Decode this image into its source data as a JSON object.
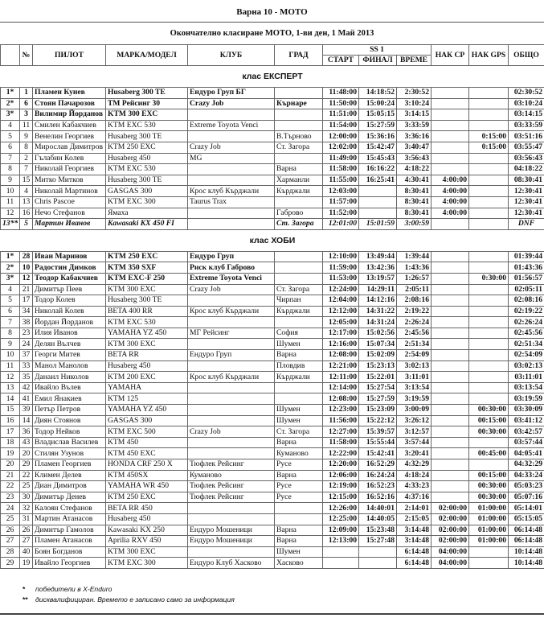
{
  "title": "Варна 10 - МОТО",
  "subtitle": "Окончателно класиране МОТО, 1-ви ден, 1 Май 2013",
  "headers": {
    "pos": "",
    "num": "№",
    "pilot": "ПИЛОТ",
    "model": "МАРКА/МОДЕЛ",
    "club": "КЛУБ",
    "city": "ГРАД",
    "ss": "SS 1",
    "start": "СТАРТ",
    "finish": "ФИНАЛ",
    "time": "ВРЕМЕ",
    "cp": "НАК CP",
    "gps": "НАК GPS",
    "total": "ОБЩО"
  },
  "classes": [
    {
      "name": "клас ЕКСПЕРТ",
      "rows": [
        [
          "1*",
          "1",
          "Пламен Кунев",
          "Husaberg 300 TE",
          "Ендуро Груп БГ",
          "",
          "11:48:00",
          "14:18:52",
          "2:30:52",
          "",
          "",
          "02:30:52"
        ],
        [
          "2*",
          "6",
          "Стоян Пачарозов",
          "TM Рейсинг 30",
          "Crazy Job",
          "Кърнаре",
          "11:50:00",
          "15:00:24",
          "3:10:24",
          "",
          "",
          "03:10:24"
        ],
        [
          "3*",
          "3",
          "Вилимир Йорданов",
          "KTM 300 EXC",
          "",
          "",
          "11:51:00",
          "15:05:15",
          "3:14:15",
          "",
          "",
          "03:14:15"
        ],
        [
          "4",
          "11",
          "Смилен Кабакчиев",
          "KTM EXC 530",
          "Extreme Toyota Venci",
          "",
          "11:54:00",
          "15:27:59",
          "3:33:59",
          "",
          "",
          "03:33:59"
        ],
        [
          "5",
          "9",
          "Венелин Георгиев",
          "Husaberg 300 TE",
          "",
          "В.Търново",
          "12:00:00",
          "15:36:16",
          "3:36:16",
          "",
          "0:15:00",
          "03:51:16"
        ],
        [
          "6",
          "8",
          "Мирослав Димитров",
          "KTM 250 EXC",
          "Crazy Job",
          "Ст. Загора",
          "12:02:00",
          "15:42:47",
          "3:40:47",
          "",
          "0:15:00",
          "03:55:47"
        ],
        [
          "7",
          "2",
          "Гълабин Колев",
          "Husaberg 450",
          "MG",
          "",
          "11:49:00",
          "15:45:43",
          "3:56:43",
          "",
          "",
          "03:56:43"
        ],
        [
          "8",
          "7",
          "Николай Георгиев",
          "KTM EXC 530",
          "",
          "Варна",
          "11:58:00",
          "16:16:22",
          "4:18:22",
          "",
          "",
          "04:18:22"
        ],
        [
          "9",
          "15",
          "Митко Митков",
          "Husaberg 300 TE",
          "",
          "Харманли",
          "11:55:00",
          "16:25:41",
          "4:30:41",
          "4:00:00",
          "",
          "08:30:41"
        ],
        [
          "10",
          "4",
          "Николай Мартинов",
          "GASGAS 300",
          "Крос клуб Кърджали",
          "Кърджали",
          "12:03:00",
          "",
          "8:30:41",
          "4:00:00",
          "",
          "12:30:41"
        ],
        [
          "11",
          "13",
          "Chris Pascoe",
          "KTM EXC 300",
          "Taurus Trax",
          "",
          "11:57:00",
          "",
          "8:30:41",
          "4:00:00",
          "",
          "12:30:41"
        ],
        [
          "12",
          "16",
          "Нечо Стефанов",
          "Ямаха",
          "",
          "Габрово",
          "11:52:00",
          "",
          "8:30:41",
          "4:00:00",
          "",
          "12:30:41"
        ],
        [
          "13**",
          "5",
          "Мартин Иванов",
          "Kawasaki KX 450 FI",
          "",
          "Ст. Загора",
          "12:01:00",
          "15:01:59",
          "3:00:59",
          "",
          "",
          "DNF"
        ]
      ]
    },
    {
      "name": "клас ХОБИ",
      "rows": [
        [
          "1*",
          "28",
          "Иван Маринов",
          "KTM 250 EXC",
          "Ендуро Груп",
          "",
          "12:10:00",
          "13:49:44",
          "1:39:44",
          "",
          "",
          "01:39:44"
        ],
        [
          "2*",
          "10",
          "Радостин Димков",
          "KTM 350 SXF",
          "Риск клуб Габрово",
          "",
          "11:59:00",
          "13:42:36",
          "1:43:36",
          "",
          "",
          "01:43:36"
        ],
        [
          "3*",
          "12",
          "Теодор Кабакчиев",
          "KTM EXC-F 250",
          "Extreme Toyota Venci",
          "",
          "11:53:00",
          "13:19:57",
          "1:26:57",
          "",
          "0:30:00",
          "01:56:57"
        ],
        [
          "4",
          "21",
          "Димитър Пеев",
          "KTM 300 EXC",
          "Crazy Job",
          "Ст. Загора",
          "12:24:00",
          "14:29:11",
          "2:05:11",
          "",
          "",
          "02:05:11"
        ],
        [
          "5",
          "17",
          "Тодор Колев",
          "Husaberg 300 TE",
          "",
          "Чирпан",
          "12:04:00",
          "14:12:16",
          "2:08:16",
          "",
          "",
          "02:08:16"
        ],
        [
          "6",
          "34",
          "Николай Колев",
          "BETA 400 RR",
          "Крос клуб Кърджали",
          "Кърджали",
          "12:12:00",
          "14:31:22",
          "2:19:22",
          "",
          "",
          "02:19:22"
        ],
        [
          "7",
          "38",
          "Йордан Йорданов",
          "KTM EXC 530",
          "",
          "",
          "12:05:00",
          "14:31:24",
          "2:26:24",
          "",
          "",
          "02:26:24"
        ],
        [
          "8",
          "23",
          "Илия Иванов",
          "YAMAHA YZ 450",
          "МГ Рейсинг",
          "София",
          "12:17:00",
          "15:02:56",
          "2:45:56",
          "",
          "",
          "02:45:56"
        ],
        [
          "9",
          "24",
          "Делян Вълчев",
          "KTM 300 EXC",
          "",
          "Шумен",
          "12:16:00",
          "15:07:34",
          "2:51:34",
          "",
          "",
          "02:51:34"
        ],
        [
          "10",
          "37",
          "Георги Митев",
          "BETA RR",
          "Ендуро Груп",
          "Варна",
          "12:08:00",
          "15:02:09",
          "2:54:09",
          "",
          "",
          "02:54:09"
        ],
        [
          "11",
          "33",
          "Манол Манолов",
          "Husaberg 450",
          "",
          "Пловдив",
          "12:21:00",
          "15:23:13",
          "3:02:13",
          "",
          "",
          "03:02:13"
        ],
        [
          "12",
          "35",
          "Данаил Николов",
          "KTM 200 EXC",
          "Крос клуб Кърджали",
          "Кърджали",
          "12:11:00",
          "15:22:01",
          "3:11:01",
          "",
          "",
          "03:11:01"
        ],
        [
          "13",
          "42",
          "Ивайло Вълев",
          "YAMAHA",
          "",
          "",
          "12:14:00",
          "15:27:54",
          "3:13:54",
          "",
          "",
          "03:13:54"
        ],
        [
          "14",
          "41",
          "Емил Янакиев",
          "KTM 125",
          "",
          "",
          "12:08:00",
          "15:27:59",
          "3:19:59",
          "",
          "",
          "03:19:59"
        ],
        [
          "15",
          "39",
          "Петър Петров",
          "YAMAHA YZ 450",
          "",
          "Шумен",
          "12:23:00",
          "15:23:09",
          "3:00:09",
          "",
          "00:30:00",
          "03:30:09"
        ],
        [
          "16",
          "14",
          "Диян Стоянов",
          "GASGAS 300",
          "",
          "Шумен",
          "11:56:00",
          "15:22:12",
          "3:26:12",
          "",
          "00:15:00",
          "03:41:12"
        ],
        [
          "17",
          "36",
          "Тодор Нейков",
          "KTM EXC 500",
          "Crazy Job",
          "Ст. Загора",
          "12:27:00",
          "15:39:57",
          "3:12:57",
          "",
          "00:30:00",
          "03:42:57"
        ],
        [
          "18",
          "43",
          "Владислав Василев",
          "KTM 450",
          "",
          "Варна",
          "11:58:00",
          "15:55:44",
          "3:57:44",
          "",
          "",
          "03:57:44"
        ],
        [
          "19",
          "20",
          "Стилян Узунов",
          "KTM 450 EXC",
          "",
          "Куманово",
          "12:22:00",
          "15:42:41",
          "3:20:41",
          "",
          "00:45:00",
          "04:05:41"
        ],
        [
          "20",
          "29",
          "Пламен Георгиев",
          "HONDA CRF 250 X",
          "Тюфлек Рейсинг",
          "Русе",
          "12:20:00",
          "16:52:29",
          "4:32:29",
          "",
          "",
          "04:32:29"
        ],
        [
          "21",
          "22",
          "Климен Делев",
          "KTM 450SX",
          "Куманово",
          "Варна",
          "12:06:00",
          "16:24:24",
          "4:18:24",
          "",
          "00:15:00",
          "04:33:24"
        ],
        [
          "22",
          "25",
          "Диан Димитров",
          "YAMAHA WR 450",
          "Тюфлек Рейсинг",
          "Русе",
          "12:19:00",
          "16:52:23",
          "4:33:23",
          "",
          "00:30:00",
          "05:03:23"
        ],
        [
          "23",
          "30",
          "Димитър Денев",
          "KTM 250 EXC",
          "Тюфлек Рейсинг",
          "Русе",
          "12:15:00",
          "16:52:16",
          "4:37:16",
          "",
          "00:30:00",
          "05:07:16"
        ],
        [
          "24",
          "32",
          "Калоян Стефанов",
          "BETA RR 450",
          "",
          "",
          "12:26:00",
          "14:40:01",
          "2:14:01",
          "02:00:00",
          "01:00:00",
          "05:14:01"
        ],
        [
          "25",
          "31",
          "Мартин Атанасов",
          "Husaberg 450",
          "",
          "",
          "12:25:00",
          "14:40:05",
          "2:15:05",
          "02:00:00",
          "01:00:00",
          "05:15:05"
        ],
        [
          "26",
          "26",
          "Димитър Гамолов",
          "Kawasaki KX 250",
          "Ендуро Мошеници",
          "Варна",
          "12:09:00",
          "15:23:48",
          "3:14:48",
          "02:00:00",
          "01:00:00",
          "06:14:48"
        ],
        [
          "27",
          "27",
          "Пламен Атанасов",
          "Aprilia RXV 450",
          "Ендуро Мошеници",
          "Варна",
          "12:13:00",
          "15:27:48",
          "3:14:48",
          "02:00:00",
          "01:00:00",
          "06:14:48"
        ],
        [
          "28",
          "40",
          "Боян Богданов",
          "KTM 300 EXC",
          "",
          "Шумен",
          "",
          "",
          "6:14:48",
          "04:00:00",
          "",
          "10:14:48"
        ],
        [
          "29",
          "19",
          "Ивайло Георгиев",
          "KTM EXC 300",
          "Ендуро Клуб Хасково",
          "Хасково",
          "",
          "",
          "6:14:48",
          "04:00:00",
          "",
          "10:14:48"
        ]
      ]
    }
  ],
  "notes": [
    {
      "mark": "*",
      "text": "победители в X-Enduro"
    },
    {
      "mark": "**",
      "text": "дисквалифициран. Времето е записано само за информация"
    }
  ]
}
